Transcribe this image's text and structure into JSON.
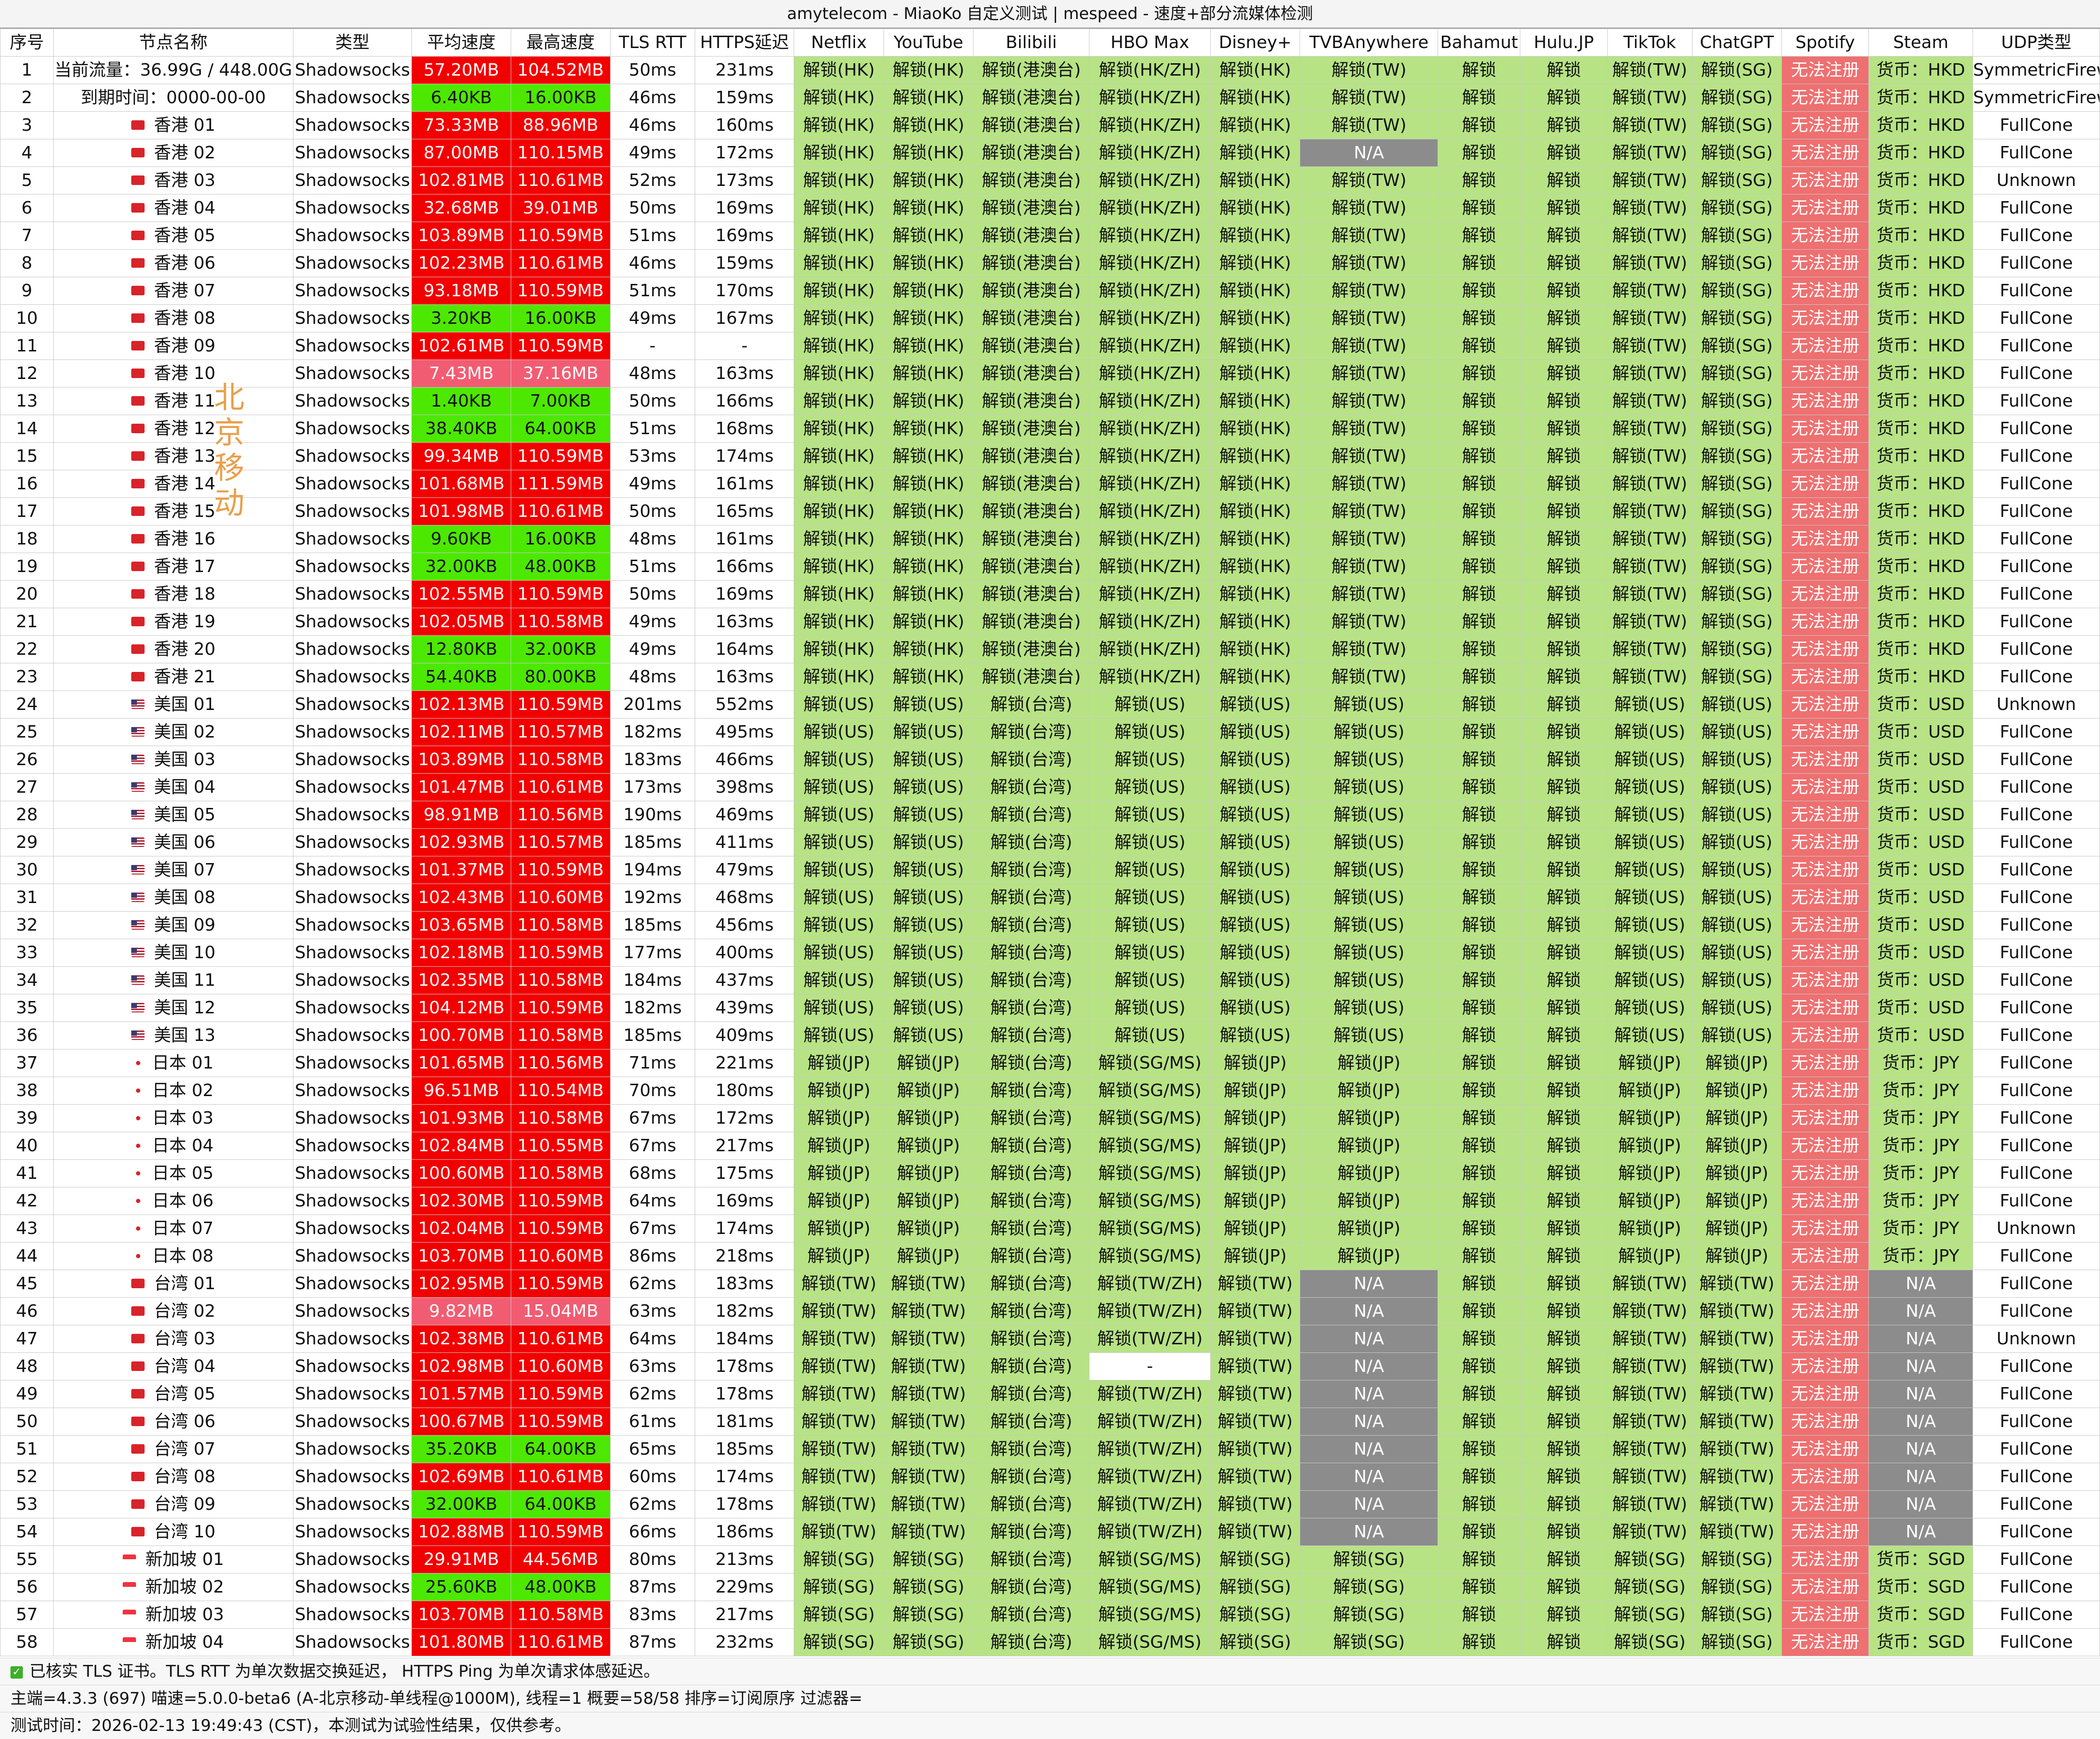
{
  "title": "amytelecom - MiaoKo 自定义测试 | mespeed - 速度+部分流媒体检测",
  "watermark": "北京移动",
  "headers": [
    "序号",
    "节点名称",
    "类型",
    "平均速度",
    "最高速度",
    "TLS RTT",
    "HTTPS延迟",
    "Netflix",
    "YouTube",
    "Bilibili",
    "HBO Max",
    "Disney+",
    "TVBAnywhere",
    "Bahamut",
    "Hulu.JP",
    "TikTok",
    "ChatGPT",
    "Spotify",
    "Steam",
    "UDP类型"
  ],
  "colors": {
    "unlock_green": "#b7e385",
    "speed_green": "#4de800",
    "speed_red": "#f20000",
    "speed_pink": "#f25c72",
    "spotify_red": "#ee7070",
    "na_gray": "#8c8c8c"
  },
  "groups": {
    "HK": {
      "flag": "hk-flag-icon",
      "net": "解锁(HK)",
      "yt": "解锁(HK)",
      "bili": "解锁(港澳台)",
      "hbo": "解锁(HK/ZH)",
      "dis": "解锁(HK)",
      "tvb": "解锁(TW)",
      "baha": "解锁",
      "hulu": "解锁",
      "tt": "解锁(TW)",
      "gpt": "解锁(SG)",
      "spot": "无法注册",
      "steam": "货币：HKD"
    },
    "US": {
      "flag": "us-flag-icon",
      "net": "解锁(US)",
      "yt": "解锁(US)",
      "bili": "解锁(台湾)",
      "hbo": "解锁(US)",
      "dis": "解锁(US)",
      "tvb": "解锁(US)",
      "baha": "解锁",
      "hulu": "解锁",
      "tt": "解锁(US)",
      "gpt": "解锁(US)",
      "spot": "无法注册",
      "steam": "货币：USD"
    },
    "JP": {
      "flag": "jp-flag-icon",
      "net": "解锁(JP)",
      "yt": "解锁(JP)",
      "bili": "解锁(台湾)",
      "hbo": "解锁(SG/MS)",
      "dis": "解锁(JP)",
      "tvb": "解锁(JP)",
      "baha": "解锁",
      "hulu": "解锁",
      "tt": "解锁(JP)",
      "gpt": "解锁(JP)",
      "spot": "无法注册",
      "steam": "货币：JPY"
    },
    "TW": {
      "flag": "tw-flag-icon",
      "net": "解锁(TW)",
      "yt": "解锁(TW)",
      "bili": "解锁(台湾)",
      "hbo": "解锁(TW/ZH)",
      "dis": "解锁(TW)",
      "tvb": "N/A",
      "baha": "解锁",
      "hulu": "解锁",
      "tt": "解锁(TW)",
      "gpt": "解锁(TW)",
      "spot": "无法注册",
      "steam": "N/A"
    },
    "SG": {
      "flag": "sg-flag-icon",
      "net": "解锁(SG)",
      "yt": "解锁(SG)",
      "bili": "解锁(台湾)",
      "hbo": "解锁(SG/MS)",
      "dis": "解锁(SG)",
      "tvb": "解锁(SG)",
      "baha": "解锁",
      "hulu": "解锁",
      "tt": "解锁(SG)",
      "gpt": "解锁(SG)",
      "spot": "无法注册",
      "steam": "货币：SGD"
    }
  },
  "rows": [
    {
      "id": "1",
      "name": "当前流量：36.99G / 448.00G",
      "g": "HK",
      "noflag": true,
      "type": "Shadowsocks",
      "avg": "57.20MB",
      "max": "104.52MB",
      "c": "red",
      "rtt": "50ms",
      "https": "231ms",
      "udp": "SymmetricFirewall"
    },
    {
      "id": "2",
      "name": "到期时间：0000-00-00",
      "g": "HK",
      "noflag": true,
      "type": "Shadowsocks",
      "avg": "6.40KB",
      "max": "16.00KB",
      "c": "grn",
      "rtt": "46ms",
      "https": "159ms",
      "udp": "SymmetricFirewall"
    },
    {
      "id": "3",
      "name": "香港 01",
      "g": "HK",
      "type": "Shadowsocks",
      "avg": "73.33MB",
      "max": "88.96MB",
      "c": "red",
      "rtt": "46ms",
      "https": "160ms",
      "udp": "FullCone"
    },
    {
      "id": "4",
      "name": "香港 02",
      "g": "HK",
      "type": "Shadowsocks",
      "avg": "87.00MB",
      "max": "110.15MB",
      "c": "red",
      "rtt": "49ms",
      "https": "172ms",
      "udp": "FullCone",
      "tvb": "N/A"
    },
    {
      "id": "5",
      "name": "香港 03",
      "g": "HK",
      "type": "Shadowsocks",
      "avg": "102.81MB",
      "max": "110.61MB",
      "c": "red",
      "rtt": "52ms",
      "https": "173ms",
      "udp": "Unknown"
    },
    {
      "id": "6",
      "name": "香港 04",
      "g": "HK",
      "type": "Shadowsocks",
      "avg": "32.68MB",
      "max": "39.01MB",
      "c": "red",
      "rtt": "50ms",
      "https": "169ms",
      "udp": "FullCone"
    },
    {
      "id": "7",
      "name": "香港 05",
      "g": "HK",
      "type": "Shadowsocks",
      "avg": "103.89MB",
      "max": "110.59MB",
      "c": "red",
      "rtt": "51ms",
      "https": "169ms",
      "udp": "FullCone"
    },
    {
      "id": "8",
      "name": "香港 06",
      "g": "HK",
      "type": "Shadowsocks",
      "avg": "102.23MB",
      "max": "110.61MB",
      "c": "red",
      "rtt": "46ms",
      "https": "159ms",
      "udp": "FullCone"
    },
    {
      "id": "9",
      "name": "香港 07",
      "g": "HK",
      "type": "Shadowsocks",
      "avg": "93.18MB",
      "max": "110.59MB",
      "c": "red",
      "rtt": "51ms",
      "https": "170ms",
      "udp": "FullCone"
    },
    {
      "id": "10",
      "name": "香港 08",
      "g": "HK",
      "type": "Shadowsocks",
      "avg": "3.20KB",
      "max": "16.00KB",
      "c": "grn",
      "rtt": "49ms",
      "https": "167ms",
      "udp": "FullCone"
    },
    {
      "id": "11",
      "name": "香港 09",
      "g": "HK",
      "type": "Shadowsocks",
      "avg": "102.61MB",
      "max": "110.59MB",
      "c": "red",
      "rtt": "-",
      "https": "-",
      "udp": "FullCone"
    },
    {
      "id": "12",
      "name": "香港 10",
      "g": "HK",
      "type": "Shadowsocks",
      "avg": "7.43MB",
      "max": "37.16MB",
      "c": "pink",
      "rtt": "48ms",
      "https": "163ms",
      "udp": "FullCone"
    },
    {
      "id": "13",
      "name": "香港 11",
      "g": "HK",
      "type": "Shadowsocks",
      "avg": "1.40KB",
      "max": "7.00KB",
      "c": "grn",
      "rtt": "50ms",
      "https": "166ms",
      "udp": "FullCone"
    },
    {
      "id": "14",
      "name": "香港 12",
      "g": "HK",
      "type": "Shadowsocks",
      "avg": "38.40KB",
      "max": "64.00KB",
      "c": "grn",
      "rtt": "51ms",
      "https": "168ms",
      "udp": "FullCone"
    },
    {
      "id": "15",
      "name": "香港 13",
      "g": "HK",
      "type": "Shadowsocks",
      "avg": "99.34MB",
      "max": "110.59MB",
      "c": "red",
      "rtt": "53ms",
      "https": "174ms",
      "udp": "FullCone"
    },
    {
      "id": "16",
      "name": "香港 14",
      "g": "HK",
      "type": "Shadowsocks",
      "avg": "101.68MB",
      "max": "111.59MB",
      "c": "red",
      "rtt": "49ms",
      "https": "161ms",
      "udp": "FullCone"
    },
    {
      "id": "17",
      "name": "香港 15",
      "g": "HK",
      "type": "Shadowsocks",
      "avg": "101.98MB",
      "max": "110.61MB",
      "c": "red",
      "rtt": "50ms",
      "https": "165ms",
      "udp": "FullCone"
    },
    {
      "id": "18",
      "name": "香港 16",
      "g": "HK",
      "type": "Shadowsocks",
      "avg": "9.60KB",
      "max": "16.00KB",
      "c": "grn",
      "rtt": "48ms",
      "https": "161ms",
      "udp": "FullCone"
    },
    {
      "id": "19",
      "name": "香港 17",
      "g": "HK",
      "type": "Shadowsocks",
      "avg": "32.00KB",
      "max": "48.00KB",
      "c": "grn",
      "rtt": "51ms",
      "https": "166ms",
      "udp": "FullCone"
    },
    {
      "id": "20",
      "name": "香港 18",
      "g": "HK",
      "type": "Shadowsocks",
      "avg": "102.55MB",
      "max": "110.59MB",
      "c": "red",
      "rtt": "50ms",
      "https": "169ms",
      "udp": "FullCone"
    },
    {
      "id": "21",
      "name": "香港 19",
      "g": "HK",
      "type": "Shadowsocks",
      "avg": "102.05MB",
      "max": "110.58MB",
      "c": "red",
      "rtt": "49ms",
      "https": "163ms",
      "udp": "FullCone"
    },
    {
      "id": "22",
      "name": "香港 20",
      "g": "HK",
      "type": "Shadowsocks",
      "avg": "12.80KB",
      "max": "32.00KB",
      "c": "grn",
      "rtt": "49ms",
      "https": "164ms",
      "udp": "FullCone"
    },
    {
      "id": "23",
      "name": "香港 21",
      "g": "HK",
      "type": "Shadowsocks",
      "avg": "54.40KB",
      "max": "80.00KB",
      "c": "grn",
      "rtt": "48ms",
      "https": "163ms",
      "udp": "FullCone"
    },
    {
      "id": "24",
      "name": "美国 01",
      "g": "US",
      "type": "Shadowsocks",
      "avg": "102.13MB",
      "max": "110.59MB",
      "c": "red",
      "rtt": "201ms",
      "https": "552ms",
      "udp": "Unknown"
    },
    {
      "id": "25",
      "name": "美国 02",
      "g": "US",
      "type": "Shadowsocks",
      "avg": "102.11MB",
      "max": "110.57MB",
      "c": "red",
      "rtt": "182ms",
      "https": "495ms",
      "udp": "FullCone"
    },
    {
      "id": "26",
      "name": "美国 03",
      "g": "US",
      "type": "Shadowsocks",
      "avg": "103.89MB",
      "max": "110.58MB",
      "c": "red",
      "rtt": "183ms",
      "https": "466ms",
      "udp": "FullCone"
    },
    {
      "id": "27",
      "name": "美国 04",
      "g": "US",
      "type": "Shadowsocks",
      "avg": "101.47MB",
      "max": "110.61MB",
      "c": "red",
      "rtt": "173ms",
      "https": "398ms",
      "udp": "FullCone"
    },
    {
      "id": "28",
      "name": "美国 05",
      "g": "US",
      "type": "Shadowsocks",
      "avg": "98.91MB",
      "max": "110.56MB",
      "c": "red",
      "rtt": "190ms",
      "https": "469ms",
      "udp": "FullCone"
    },
    {
      "id": "29",
      "name": "美国 06",
      "g": "US",
      "type": "Shadowsocks",
      "avg": "102.93MB",
      "max": "110.57MB",
      "c": "red",
      "rtt": "185ms",
      "https": "411ms",
      "udp": "FullCone"
    },
    {
      "id": "30",
      "name": "美国 07",
      "g": "US",
      "type": "Shadowsocks",
      "avg": "101.37MB",
      "max": "110.59MB",
      "c": "red",
      "rtt": "194ms",
      "https": "479ms",
      "udp": "FullCone"
    },
    {
      "id": "31",
      "name": "美国 08",
      "g": "US",
      "type": "Shadowsocks",
      "avg": "102.43MB",
      "max": "110.60MB",
      "c": "red",
      "rtt": "192ms",
      "https": "468ms",
      "udp": "FullCone"
    },
    {
      "id": "32",
      "name": "美国 09",
      "g": "US",
      "type": "Shadowsocks",
      "avg": "103.65MB",
      "max": "110.58MB",
      "c": "red",
      "rtt": "185ms",
      "https": "456ms",
      "udp": "FullCone"
    },
    {
      "id": "33",
      "name": "美国 10",
      "g": "US",
      "type": "Shadowsocks",
      "avg": "102.18MB",
      "max": "110.59MB",
      "c": "red",
      "rtt": "177ms",
      "https": "400ms",
      "udp": "FullCone"
    },
    {
      "id": "34",
      "name": "美国 11",
      "g": "US",
      "type": "Shadowsocks",
      "avg": "102.35MB",
      "max": "110.58MB",
      "c": "red",
      "rtt": "184ms",
      "https": "437ms",
      "udp": "FullCone"
    },
    {
      "id": "35",
      "name": "美国 12",
      "g": "US",
      "type": "Shadowsocks",
      "avg": "104.12MB",
      "max": "110.59MB",
      "c": "red",
      "rtt": "182ms",
      "https": "439ms",
      "udp": "FullCone"
    },
    {
      "id": "36",
      "name": "美国 13",
      "g": "US",
      "type": "Shadowsocks",
      "avg": "100.70MB",
      "max": "110.58MB",
      "c": "red",
      "rtt": "185ms",
      "https": "409ms",
      "udp": "FullCone"
    },
    {
      "id": "37",
      "name": "日本 01",
      "g": "JP",
      "type": "Shadowsocks",
      "avg": "101.65MB",
      "max": "110.56MB",
      "c": "red",
      "rtt": "71ms",
      "https": "221ms",
      "udp": "FullCone"
    },
    {
      "id": "38",
      "name": "日本 02",
      "g": "JP",
      "type": "Shadowsocks",
      "avg": "96.51MB",
      "max": "110.54MB",
      "c": "red",
      "rtt": "70ms",
      "https": "180ms",
      "udp": "FullCone"
    },
    {
      "id": "39",
      "name": "日本 03",
      "g": "JP",
      "type": "Shadowsocks",
      "avg": "101.93MB",
      "max": "110.58MB",
      "c": "red",
      "rtt": "67ms",
      "https": "172ms",
      "udp": "FullCone"
    },
    {
      "id": "40",
      "name": "日本 04",
      "g": "JP",
      "type": "Shadowsocks",
      "avg": "102.84MB",
      "max": "110.55MB",
      "c": "red",
      "rtt": "67ms",
      "https": "217ms",
      "udp": "FullCone"
    },
    {
      "id": "41",
      "name": "日本 05",
      "g": "JP",
      "type": "Shadowsocks",
      "avg": "100.60MB",
      "max": "110.58MB",
      "c": "red",
      "rtt": "68ms",
      "https": "175ms",
      "udp": "FullCone"
    },
    {
      "id": "42",
      "name": "日本 06",
      "g": "JP",
      "type": "Shadowsocks",
      "avg": "102.30MB",
      "max": "110.59MB",
      "c": "red",
      "rtt": "64ms",
      "https": "169ms",
      "udp": "FullCone"
    },
    {
      "id": "43",
      "name": "日本 07",
      "g": "JP",
      "type": "Shadowsocks",
      "avg": "102.04MB",
      "max": "110.59MB",
      "c": "red",
      "rtt": "67ms",
      "https": "174ms",
      "udp": "Unknown"
    },
    {
      "id": "44",
      "name": "日本 08",
      "g": "JP",
      "type": "Shadowsocks",
      "avg": "103.70MB",
      "max": "110.60MB",
      "c": "red",
      "rtt": "86ms",
      "https": "218ms",
      "udp": "FullCone"
    },
    {
      "id": "45",
      "name": "台湾 01",
      "g": "TW",
      "type": "Shadowsocks",
      "avg": "102.95MB",
      "max": "110.59MB",
      "c": "red",
      "rtt": "62ms",
      "https": "183ms",
      "udp": "FullCone"
    },
    {
      "id": "46",
      "name": "台湾 02",
      "g": "TW",
      "type": "Shadowsocks",
      "avg": "9.82MB",
      "max": "15.04MB",
      "c": "pink",
      "rtt": "63ms",
      "https": "182ms",
      "udp": "FullCone"
    },
    {
      "id": "47",
      "name": "台湾 03",
      "g": "TW",
      "type": "Shadowsocks",
      "avg": "102.38MB",
      "max": "110.61MB",
      "c": "red",
      "rtt": "64ms",
      "https": "184ms",
      "udp": "Unknown"
    },
    {
      "id": "48",
      "name": "台湾 04",
      "g": "TW",
      "type": "Shadowsocks",
      "avg": "102.98MB",
      "max": "110.60MB",
      "c": "red",
      "rtt": "63ms",
      "https": "178ms",
      "udp": "FullCone",
      "hbo": "-"
    },
    {
      "id": "49",
      "name": "台湾 05",
      "g": "TW",
      "type": "Shadowsocks",
      "avg": "101.57MB",
      "max": "110.59MB",
      "c": "red",
      "rtt": "62ms",
      "https": "178ms",
      "udp": "FullCone"
    },
    {
      "id": "50",
      "name": "台湾 06",
      "g": "TW",
      "type": "Shadowsocks",
      "avg": "100.67MB",
      "max": "110.59MB",
      "c": "red",
      "rtt": "61ms",
      "https": "181ms",
      "udp": "FullCone"
    },
    {
      "id": "51",
      "name": "台湾 07",
      "g": "TW",
      "type": "Shadowsocks",
      "avg": "35.20KB",
      "max": "64.00KB",
      "c": "grn",
      "rtt": "65ms",
      "https": "185ms",
      "udp": "FullCone"
    },
    {
      "id": "52",
      "name": "台湾 08",
      "g": "TW",
      "type": "Shadowsocks",
      "avg": "102.69MB",
      "max": "110.61MB",
      "c": "red",
      "rtt": "60ms",
      "https": "174ms",
      "udp": "FullCone"
    },
    {
      "id": "53",
      "name": "台湾 09",
      "g": "TW",
      "type": "Shadowsocks",
      "avg": "32.00KB",
      "max": "64.00KB",
      "c": "grn",
      "rtt": "62ms",
      "https": "178ms",
      "udp": "FullCone"
    },
    {
      "id": "54",
      "name": "台湾 10",
      "g": "TW",
      "type": "Shadowsocks",
      "avg": "102.88MB",
      "max": "110.59MB",
      "c": "red",
      "rtt": "66ms",
      "https": "186ms",
      "udp": "FullCone"
    },
    {
      "id": "55",
      "name": "新加坡 01",
      "g": "SG",
      "type": "Shadowsocks",
      "avg": "29.91MB",
      "max": "44.56MB",
      "c": "red",
      "rtt": "80ms",
      "https": "213ms",
      "udp": "FullCone"
    },
    {
      "id": "56",
      "name": "新加坡 02",
      "g": "SG",
      "type": "Shadowsocks",
      "avg": "25.60KB",
      "max": "48.00KB",
      "c": "grn",
      "rtt": "87ms",
      "https": "229ms",
      "udp": "FullCone"
    },
    {
      "id": "57",
      "name": "新加坡 03",
      "g": "SG",
      "type": "Shadowsocks",
      "avg": "103.70MB",
      "max": "110.58MB",
      "c": "red",
      "rtt": "83ms",
      "https": "217ms",
      "udp": "FullCone"
    },
    {
      "id": "58",
      "name": "新加坡 04",
      "g": "SG",
      "type": "Shadowsocks",
      "avg": "101.80MB",
      "max": "110.61MB",
      "c": "red",
      "rtt": "87ms",
      "https": "232ms",
      "udp": "FullCone"
    }
  ],
  "footer": {
    "line1": "已核实 TLS 证书。TLS RTT 为单次数据交换延迟， HTTPS Ping 为单次请求体感延迟。",
    "line2": "主端=4.3.3 (697) 喵速=5.0.0-beta6 (A-北京移动-单线程@1000M), 线程=1 概要=58/58 排序=订阅原序 过滤器=",
    "line3": "测试时间：2026-02-13 19:49:43 (CST)，本测试为试验性结果，仅供参考。"
  }
}
